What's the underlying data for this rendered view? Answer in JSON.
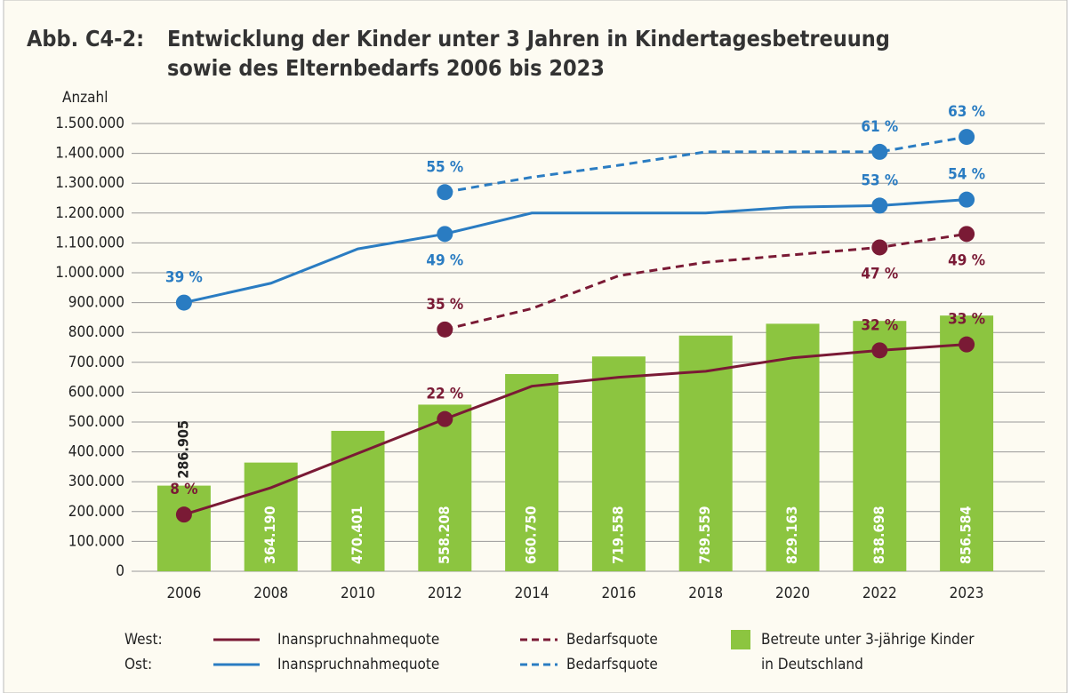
{
  "chart_data": {
    "type": "bar-line",
    "figure_label": "Abb. C4-2:",
    "title": [
      "Entwicklung der Kinder unter 3 Jahren in Kindertagesbetreuung",
      "sowie des Elternbedarfs 2006 bis 2023"
    ],
    "y_label": "Anzahl",
    "ylim": [
      0,
      1500000
    ],
    "yticks": [
      0,
      {
        "value": 100000,
        "label": "100.000"
      },
      {
        "value": 200000,
        "label": "200.000"
      },
      {
        "value": 300000,
        "label": "300.000"
      },
      {
        "value": 400000,
        "label": "400.000"
      },
      {
        "value": 500000,
        "label": "500.000"
      },
      {
        "value": 600000,
        "label": "600.000"
      },
      {
        "value": 700000,
        "label": "700.000"
      },
      {
        "value": 800000,
        "label": "800.000"
      },
      {
        "value": 900000,
        "label": "900.000"
      },
      {
        "value": 1000000,
        "label": "1.000.000"
      },
      {
        "value": 1100000,
        "label": "1.100.000"
      },
      {
        "value": 1200000,
        "label": "1.200.000"
      },
      {
        "value": 1300000,
        "label": "1.300.000"
      },
      {
        "value": 1400000,
        "label": "1.400.000"
      },
      {
        "value": 1500000,
        "label": "1.500.000"
      }
    ],
    "grid": true,
    "categories": [
      "2006",
      "2008",
      "2010",
      "2012",
      "2014",
      "2016",
      "2018",
      "2020",
      "2022",
      "2023"
    ],
    "bar_series": {
      "name": [
        "Betreute unter 3-jährige Kinder",
        "in Deutschland"
      ],
      "color": "#8cc540",
      "values": [
        286905,
        364190,
        470401,
        558208,
        660750,
        719558,
        789559,
        829163,
        838698,
        856584
      ],
      "value_labels": [
        "286.905",
        "364.190",
        "470.401",
        "558.208",
        "660.750",
        "719.558",
        "789.559",
        "829.163",
        "838.698",
        "856.584"
      ]
    },
    "line_groups": [
      {
        "label": "West:",
        "series": [
          {
            "name": "Inanspruchnahmequote",
            "color": "#7a1a35",
            "dashed": false,
            "values": [
              190000,
              280000,
              395000,
              510000,
              620000,
              650000,
              670000,
              715000,
              740000,
              760000
            ],
            "value_labels": [
              "8 %",
              null,
              null,
              "22 %",
              null,
              null,
              null,
              null,
              "32 %",
              "33 %"
            ]
          },
          {
            "name": "Bedarfsquote",
            "color": "#7a1a35",
            "dashed": true,
            "values": [
              null,
              null,
              null,
              810000,
              880000,
              990000,
              1035000,
              1060000,
              1085000,
              1130000
            ],
            "value_labels": [
              null,
              null,
              null,
              "35 %",
              null,
              null,
              null,
              null,
              "47 %",
              "49 %"
            ]
          }
        ]
      },
      {
        "label": "Ost:",
        "series": [
          {
            "name": "Inanspruchnahmequote",
            "color": "#2a7cc2",
            "dashed": false,
            "values": [
              900000,
              965000,
              1080000,
              1130000,
              1200000,
              1200000,
              1200000,
              1220000,
              1225000,
              1245000
            ],
            "value_labels": [
              "39 %",
              null,
              null,
              "49 %",
              null,
              null,
              null,
              null,
              "53 %",
              "54 %"
            ]
          },
          {
            "name": "Bedarfsquote",
            "color": "#2a7cc2",
            "dashed": true,
            "values": [
              null,
              null,
              null,
              1270000,
              1320000,
              1360000,
              1405000,
              1405000,
              1405000,
              1455000
            ],
            "value_labels": [
              null,
              null,
              null,
              "55 %",
              null,
              null,
              null,
              null,
              "61 %",
              "63 %"
            ]
          }
        ]
      }
    ]
  }
}
